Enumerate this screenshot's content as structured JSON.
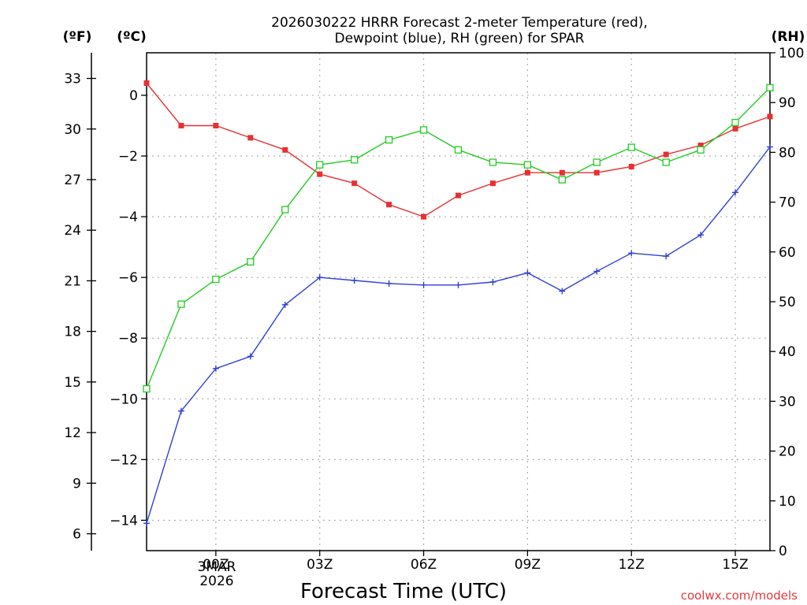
{
  "chart_data": {
    "type": "line",
    "title": "2026030222 HRRR Forecast 2-meter Temperature (red),",
    "subtitle": "Dewpoint (blue), RH (green) for SPAR",
    "xlabel": "Forecast Time (UTC)",
    "credit": "coolwx.com/models",
    "x": [
      -1,
      0,
      1,
      2,
      3,
      4,
      5,
      6,
      7,
      8,
      9,
      10,
      11,
      12,
      13,
      14,
      15,
      16,
      17
    ],
    "xlim": [
      -1,
      17
    ],
    "x_ticks": [
      {
        "x": 1,
        "label": "00Z"
      },
      {
        "x": 4,
        "label": "03Z"
      },
      {
        "x": 7,
        "label": "06Z"
      },
      {
        "x": 10,
        "label": "09Z"
      },
      {
        "x": 13,
        "label": "12Z"
      },
      {
        "x": 16,
        "label": "15Z"
      }
    ],
    "date_label": [
      "3MAR",
      "2026"
    ],
    "left_axis": {
      "unit": "(ºC)",
      "ylim": [
        -15.0,
        1.4
      ],
      "ticks": [
        0,
        -2,
        -4,
        -6,
        -8,
        -10,
        -12,
        -14
      ]
    },
    "far_left_axis": {
      "unit": "(ºF)",
      "ticks": [
        33,
        30,
        27,
        24,
        21,
        18,
        15,
        12,
        9,
        6
      ]
    },
    "right_axis": {
      "unit": "(RH)",
      "ylim": [
        0,
        100
      ],
      "ticks": [
        100,
        90,
        80,
        70,
        60,
        50,
        40,
        30,
        20,
        10,
        0
      ]
    },
    "series": [
      {
        "name": "2-meter Temperature",
        "axis": "celsius",
        "color": "#e83030",
        "marker": "filled-square",
        "values": [
          0.4,
          -1.0,
          -1.0,
          -1.4,
          -1.8,
          -2.6,
          -2.9,
          -3.6,
          -4.0,
          -3.3,
          -2.9,
          -2.55,
          -2.55,
          -2.55,
          -2.35,
          -1.95,
          -1.65,
          -1.1,
          -0.7
        ]
      },
      {
        "name": "Dewpoint",
        "axis": "celsius",
        "color": "#2f3fd8",
        "marker": "plus",
        "values": [
          -14.1,
          -10.4,
          -9.0,
          -8.6,
          -6.9,
          -6.0,
          -6.1,
          -6.2,
          -6.25,
          -6.25,
          -6.15,
          -5.85,
          -6.45,
          -5.8,
          -5.2,
          -5.3,
          -4.6,
          -3.2,
          -1.7
        ]
      },
      {
        "name": "RH",
        "axis": "rh",
        "color": "#22cc22",
        "marker": "open-square",
        "values": [
          32.5,
          49.5,
          54.5,
          58,
          68.5,
          77.5,
          78.5,
          82.5,
          84.5,
          80.5,
          78,
          77.5,
          74.5,
          78,
          81,
          78,
          80.5,
          86,
          93
        ]
      }
    ]
  }
}
